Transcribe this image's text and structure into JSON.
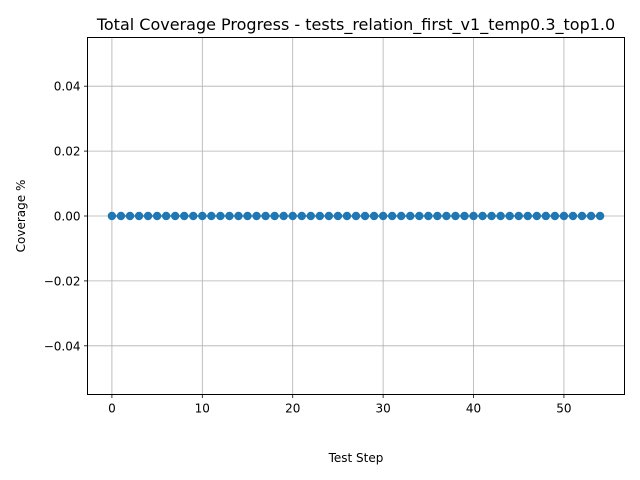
{
  "chart_data": {
    "type": "line",
    "title": "Total Coverage Progress - tests_relation_first_v1_temp0.3_top1.0",
    "xlabel": "Test Step",
    "ylabel": "Coverage %",
    "xlim": [
      -2.7,
      56.7
    ],
    "ylim": [
      -0.055,
      0.055
    ],
    "x_ticks": [
      0,
      10,
      20,
      30,
      40,
      50
    ],
    "x_tick_labels": [
      "0",
      "10",
      "20",
      "30",
      "40",
      "50"
    ],
    "y_ticks": [
      0.04,
      0.02,
      0.0,
      -0.02,
      -0.04
    ],
    "y_tick_labels": [
      "0.04",
      "0.02",
      "0.00",
      "−0.02",
      "−0.04"
    ],
    "grid": true,
    "series": [
      {
        "color": "#1f77b4",
        "marker": "circle",
        "x": [
          0,
          1,
          2,
          3,
          4,
          5,
          6,
          7,
          8,
          9,
          10,
          11,
          12,
          13,
          14,
          15,
          16,
          17,
          18,
          19,
          20,
          21,
          22,
          23,
          24,
          25,
          26,
          27,
          28,
          29,
          30,
          31,
          32,
          33,
          34,
          35,
          36,
          37,
          38,
          39,
          40,
          41,
          42,
          43,
          44,
          45,
          46,
          47,
          48,
          49,
          50,
          51,
          52,
          53,
          54
        ],
        "y": [
          0,
          0,
          0,
          0,
          0,
          0,
          0,
          0,
          0,
          0,
          0,
          0,
          0,
          0,
          0,
          0,
          0,
          0,
          0,
          0,
          0,
          0,
          0,
          0,
          0,
          0,
          0,
          0,
          0,
          0,
          0,
          0,
          0,
          0,
          0,
          0,
          0,
          0,
          0,
          0,
          0,
          0,
          0,
          0,
          0,
          0,
          0,
          0,
          0,
          0,
          0,
          0,
          0,
          0,
          0
        ]
      }
    ]
  }
}
